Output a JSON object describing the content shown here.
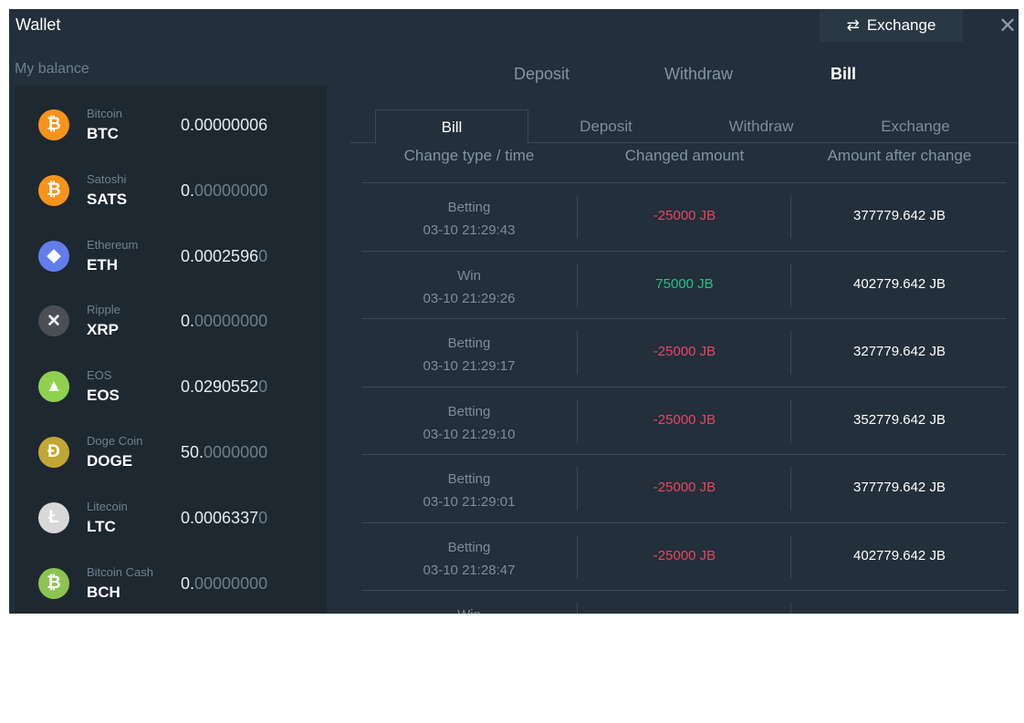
{
  "window": {
    "title": "Wallet",
    "exchange_button": "Exchange",
    "close": "✕"
  },
  "balance": {
    "label": "My balance",
    "coins": [
      {
        "name": "Bitcoin",
        "symbol": "BTC",
        "amount": "0.00000006",
        "amount_dim": "",
        "color": "#f7931a",
        "glyph": "₿"
      },
      {
        "name": "Satoshi",
        "symbol": "SATS",
        "amount": "0.",
        "amount_dim": "00000000",
        "color": "#f7931a",
        "glyph": "₿"
      },
      {
        "name": "Ethereum",
        "symbol": "ETH",
        "amount": "0.0002596",
        "amount_dim": "0",
        "color": "#627eea",
        "glyph": "◆"
      },
      {
        "name": "Ripple",
        "symbol": "XRP",
        "amount": "0.",
        "amount_dim": "00000000",
        "color": "#4a4f55",
        "glyph": "✕"
      },
      {
        "name": "EOS",
        "symbol": "EOS",
        "amount": "0.0290552",
        "amount_dim": "0",
        "color": "#8fd14f",
        "glyph": "▲"
      },
      {
        "name": "Doge Coin",
        "symbol": "DOGE",
        "amount": "50.",
        "amount_dim": "0000000",
        "color": "#c2a633",
        "glyph": "Đ"
      },
      {
        "name": "Litecoin",
        "symbol": "LTC",
        "amount": "0.0006337",
        "amount_dim": "0",
        "color": "#d8d8d8",
        "glyph": "Ł"
      },
      {
        "name": "Bitcoin Cash",
        "symbol": "BCH",
        "amount": "0.",
        "amount_dim": "00000000",
        "color": "#8dc351",
        "glyph": "₿"
      }
    ]
  },
  "top_tabs": [
    {
      "label": "Deposit",
      "active": false
    },
    {
      "label": "Withdraw",
      "active": false
    },
    {
      "label": "Bill",
      "active": true
    }
  ],
  "sub_tabs": [
    {
      "label": "Bill",
      "active": true
    },
    {
      "label": "Deposit",
      "active": false
    },
    {
      "label": "Withdraw",
      "active": false
    },
    {
      "label": "Exchange",
      "active": false
    }
  ],
  "table": {
    "headers": [
      "Change type / time",
      "Changed amount",
      "Amount after change"
    ],
    "rows": [
      {
        "type": "Betting",
        "time": "03-10 21:29:43",
        "change": "-25000 JB",
        "after": "377779.642 JB",
        "positive": false
      },
      {
        "type": "Win",
        "time": "03-10 21:29:26",
        "change": "75000 JB",
        "after": "402779.642 JB",
        "positive": true
      },
      {
        "type": "Betting",
        "time": "03-10 21:29:17",
        "change": "-25000 JB",
        "after": "327779.642 JB",
        "positive": false
      },
      {
        "type": "Betting",
        "time": "03-10 21:29:10",
        "change": "-25000 JB",
        "after": "352779.642 JB",
        "positive": false
      },
      {
        "type": "Betting",
        "time": "03-10 21:29:01",
        "change": "-25000 JB",
        "after": "377779.642 JB",
        "positive": false
      },
      {
        "type": "Betting",
        "time": "03-10 21:28:47",
        "change": "-25000 JB",
        "after": "402779.642 JB",
        "positive": false
      },
      {
        "type": "Win",
        "time": "",
        "change": "",
        "after": "",
        "positive": true
      }
    ]
  },
  "colors": {
    "negative": "#e8445f",
    "positive": "#1fc48a",
    "background": "#232f3b"
  }
}
